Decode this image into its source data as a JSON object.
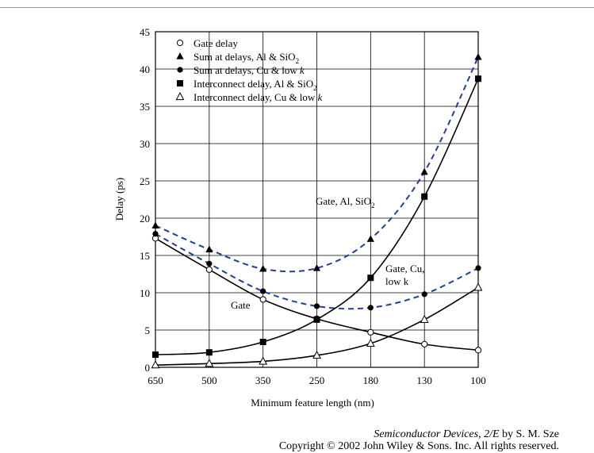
{
  "chart_data": {
    "type": "line",
    "xlabel": "Minimum feature length (nm)",
    "ylabel": "Delay (ps)",
    "categories": [
      "650",
      "500",
      "350",
      "250",
      "180",
      "130",
      "100"
    ],
    "yticks": [
      "0",
      "5",
      "10",
      "15",
      "20",
      "25",
      "30",
      "35",
      "40",
      "45"
    ],
    "ylim": [
      0,
      45
    ],
    "grid": true,
    "legend_position": "top-left",
    "series": [
      {
        "name": "Gate delay",
        "marker": "circle-open",
        "values": [
          17.3,
          13.1,
          9.1,
          6.5,
          4.7,
          3.1,
          2.3
        ]
      },
      {
        "name": "Sum at delays, Al & SiO2",
        "marker": "triangle-filled",
        "values": [
          19.0,
          15.8,
          13.2,
          13.3,
          17.2,
          26.2,
          41.6
        ]
      },
      {
        "name": "Sum at delays, Cu & low k",
        "marker": "circle-filled",
        "values": [
          17.9,
          13.9,
          10.2,
          8.2,
          8.0,
          9.8,
          13.3
        ]
      },
      {
        "name": "Interconnect delay, Al & SiO2",
        "marker": "square-filled",
        "values": [
          1.7,
          2.0,
          3.4,
          6.4,
          12.0,
          22.9,
          38.7
        ]
      },
      {
        "name": "Interconnect delay, Cu & low k",
        "marker": "triangle-open",
        "values": [
          0.3,
          0.5,
          0.8,
          1.6,
          3.2,
          6.4,
          10.7
        ]
      }
    ],
    "annotations": [
      "Gate, Al, SiO",
      "2",
      "Gate, Cu,",
      "low k",
      "Gate"
    ]
  },
  "credit": {
    "book": "Semiconductor Devices, 2/E",
    "author": " by S. M. Sze",
    "copyright": "Copyright © 2002 John Wiley & Sons. Inc. All rights reserved."
  }
}
